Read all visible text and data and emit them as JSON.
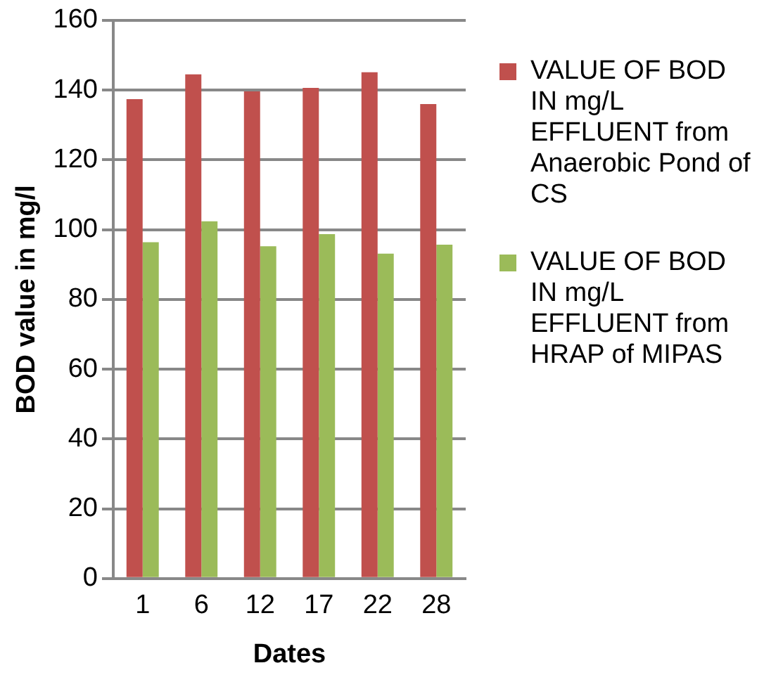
{
  "chart_data": {
    "type": "bar",
    "xlabel": "Dates",
    "ylabel": "BOD value in mg/l",
    "categories": [
      "1",
      "6",
      "12",
      "17",
      "22",
      "28"
    ],
    "series": [
      {
        "name": "VALUE OF BOD IN mg/L EFFLUENT from Anaerobic Pond of CS",
        "color": "#c0504d",
        "values": [
          137.4,
          144.5,
          139.6,
          140.6,
          145.1,
          136
        ]
      },
      {
        "name": "VALUE OF BOD IN mg/L EFFLUENT from HRAP of MIPAS",
        "color": "#9bbb59",
        "values": [
          96.4,
          102.4,
          95.2,
          98.7,
          93.1,
          95.7
        ]
      }
    ],
    "ylim": [
      0,
      160
    ],
    "yticks": [
      0,
      20,
      40,
      60,
      80,
      100,
      120,
      140,
      160
    ],
    "grid": "y",
    "legend": "right"
  }
}
